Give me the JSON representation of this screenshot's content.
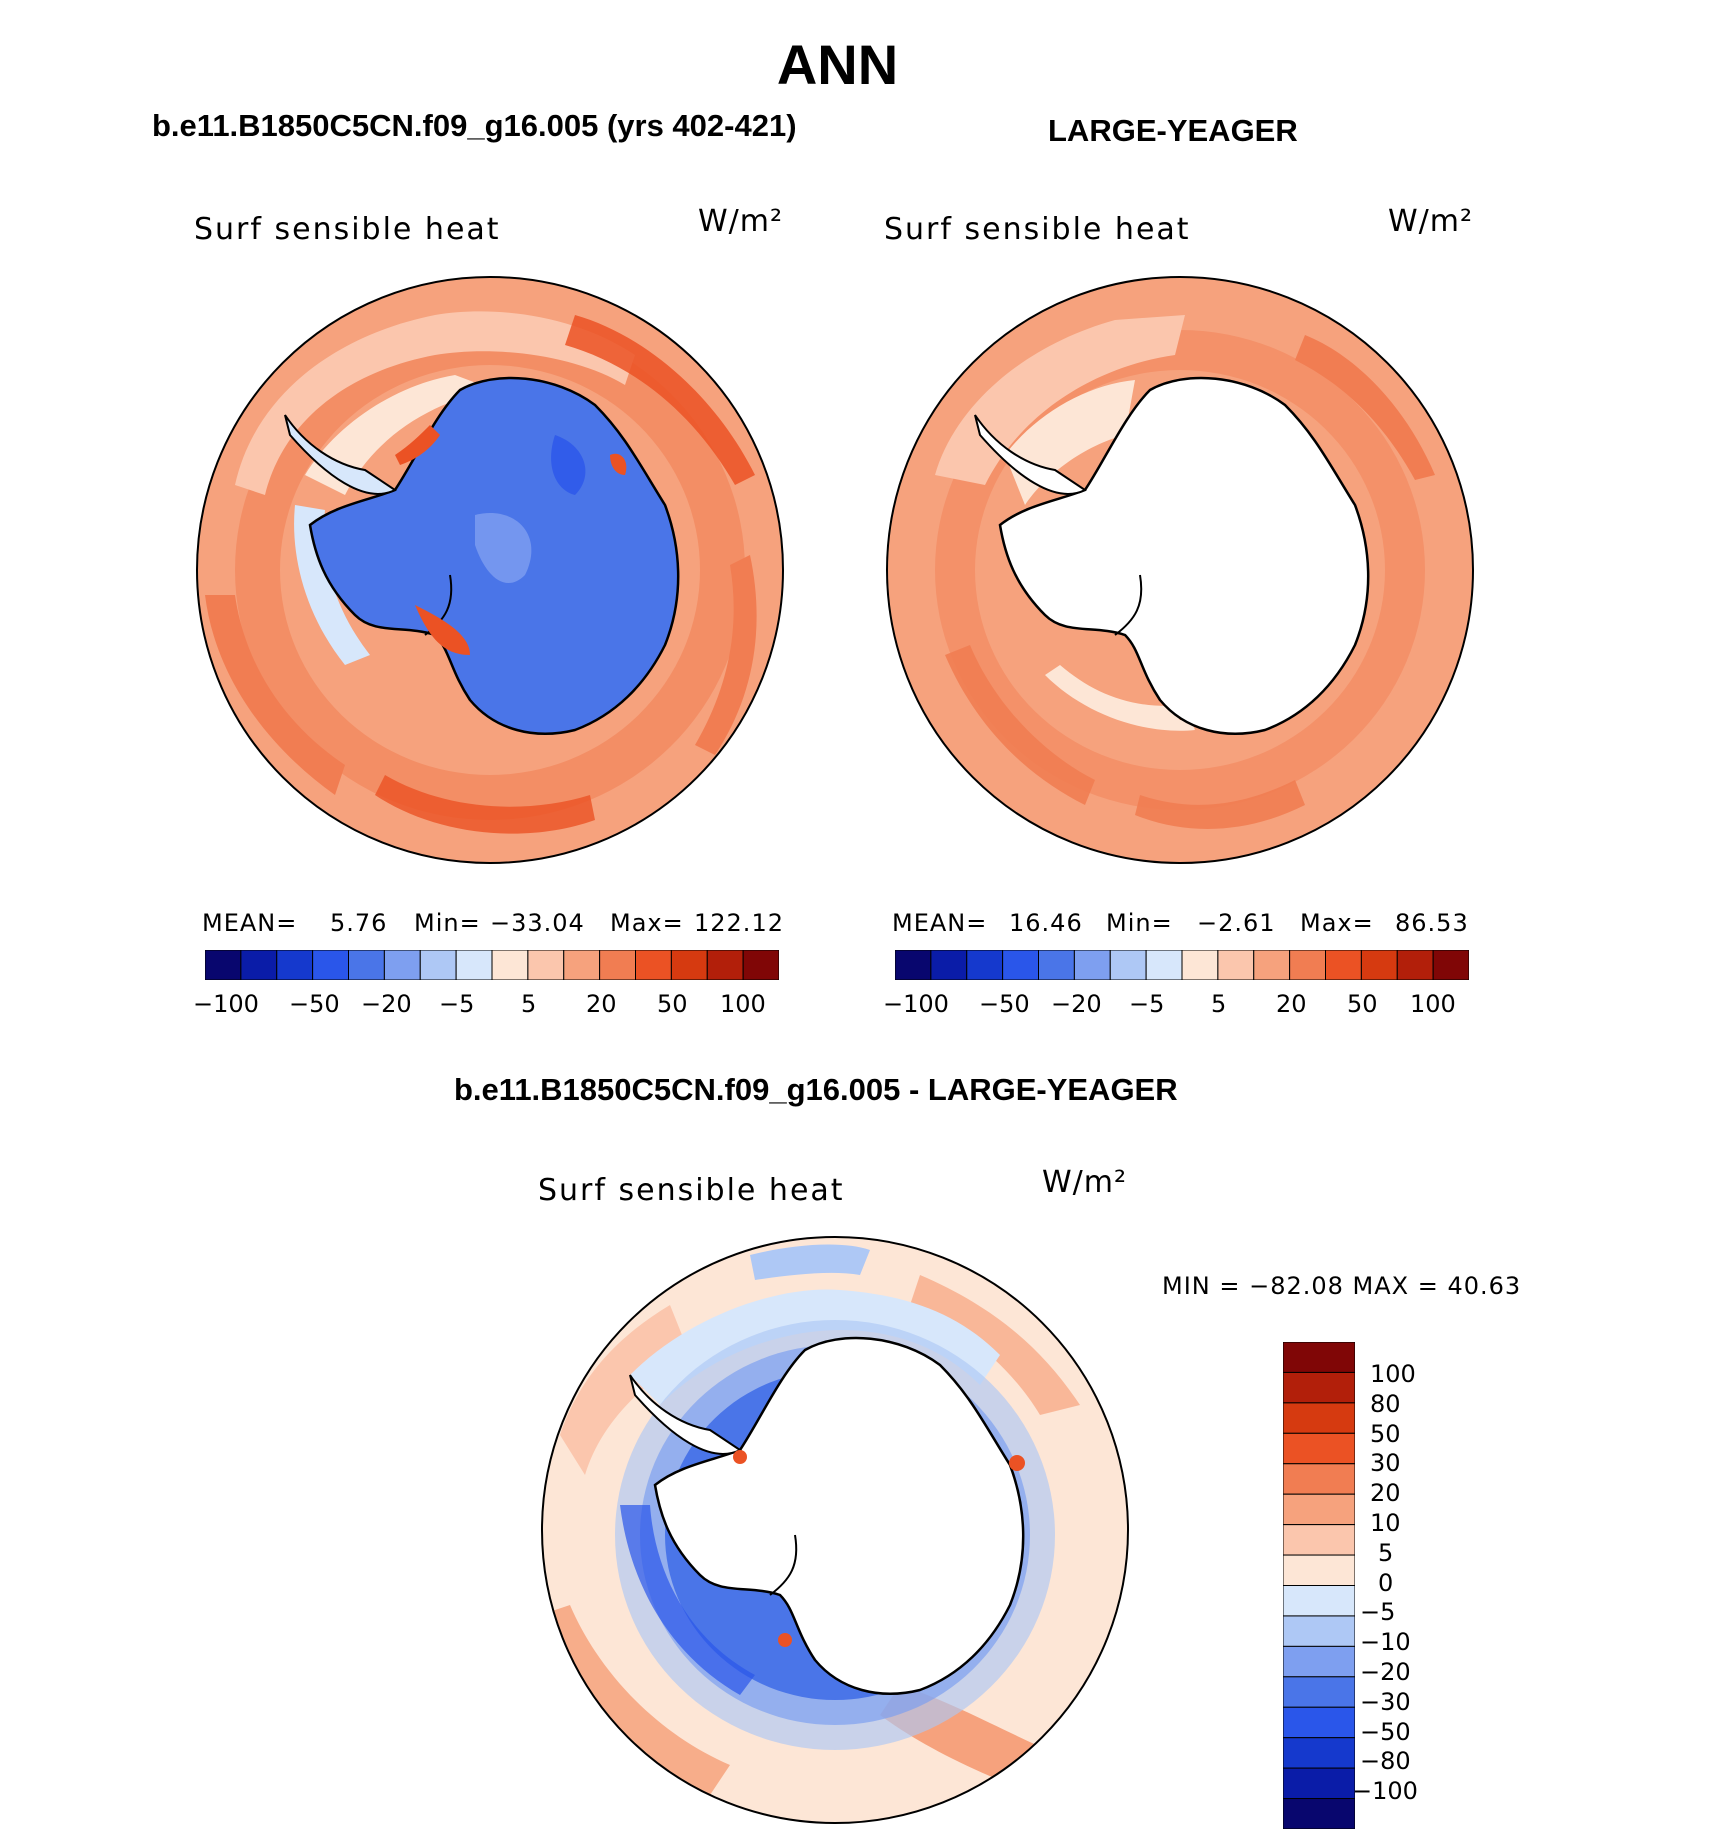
{
  "title": "ANN",
  "panels": [
    {
      "case_title": "b.e11.B1850C5CN.f09_g16.005 (yrs 402-421)",
      "variable": "Surf sensible heat",
      "units": "W/m²",
      "mean_label": "MEAN=",
      "mean_value": "5.76",
      "min_label": "Min=",
      "min_value": "−33.04",
      "max_label": "Max=",
      "max_value": "122.12",
      "colorbar_ticks": [
        "−100",
        "−50",
        "−20",
        "−5",
        "5",
        "20",
        "50",
        "100"
      ]
    },
    {
      "case_title": "LARGE-YEAGER",
      "variable": "Surf sensible heat",
      "units": "W/m²",
      "mean_label": "MEAN=",
      "mean_value": "16.46",
      "min_label": "Min=",
      "min_value": "−2.61",
      "max_label": "Max=",
      "max_value": "86.53",
      "colorbar_ticks": [
        "−100",
        "−50",
        "−20",
        "−5",
        "5",
        "20",
        "50",
        "100"
      ]
    }
  ],
  "difference": {
    "title": "b.e11.B1850C5CN.f09_g16.005 - LARGE-YEAGER",
    "variable": "Surf sensible heat",
    "units": "W/m²",
    "stats": "MIN = −82.08 MAX =  40.63",
    "colorbar_labels": [
      "100",
      "80",
      "50",
      "30",
      "20",
      "10",
      "5",
      "0",
      "−5",
      "−10",
      "−20",
      "−30",
      "−50",
      "−80",
      "−100"
    ]
  },
  "colors": {
    "levels16": [
      "#08066e",
      "#0a1ca8",
      "#1539cd",
      "#2a56ea",
      "#4a75e8",
      "#7e9ff0",
      "#aec8f5",
      "#d7e7fb",
      "#fde6d6",
      "#fbc6ad",
      "#f6a27d",
      "#f17d52",
      "#eb5224",
      "#d63a10",
      "#b21f0a",
      "#800606"
    ],
    "ocean_light": "#fbc6ad",
    "ocean_mid": "#f6a27d",
    "ocean_strong": "#f17d52",
    "ice_blue": "#4a75e8",
    "land_white": "#ffffff"
  }
}
